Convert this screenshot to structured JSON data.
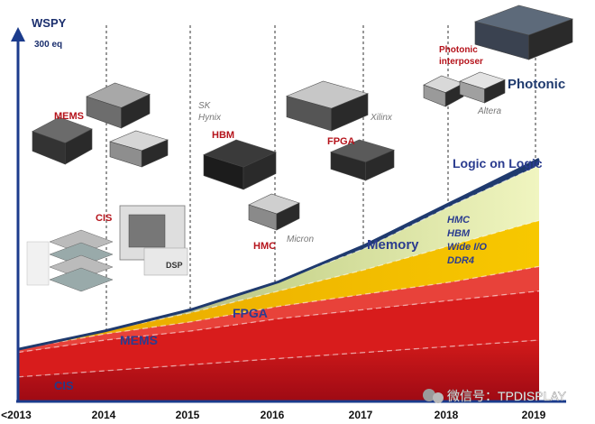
{
  "chart_data": {
    "type": "area",
    "title": "",
    "xlabel": "",
    "ylabel": "WSPY",
    "ylabel_sub": "300 eq",
    "x": [
      "<2013",
      "2014",
      "2015",
      "2016",
      "2017",
      "2018",
      "2019"
    ],
    "ylim": [
      0,
      100
    ],
    "stacked": true,
    "grid": "vertical dashed",
    "series": [
      {
        "name": "CIS",
        "color": "#b50d18",
        "values": [
          8,
          10,
          12,
          14,
          16,
          18,
          20
        ]
      },
      {
        "name": "MEMS",
        "color": "#d81c1c",
        "values": [
          8,
          10,
          11,
          13,
          14,
          15,
          16
        ]
      },
      {
        "name": "FPGA",
        "color": "#e8423a",
        "values": [
          1,
          2,
          3,
          4,
          5,
          6,
          8
        ]
      },
      {
        "name": "Memory",
        "color": "#f6c000",
        "values": [
          0,
          1,
          3,
          5,
          8,
          12,
          15
        ]
      },
      {
        "name": "Logic on Logic",
        "color": "#e6f0a8",
        "values": [
          0,
          0,
          1,
          3,
          7,
          13,
          18
        ]
      },
      {
        "name": "Photonic",
        "color": "#1f3a6e",
        "values": [
          0,
          0,
          0,
          0,
          1,
          1,
          2
        ]
      }
    ],
    "memory_types": [
      "HMC",
      "HBM",
      "Wide I/O",
      "DDR4"
    ],
    "annotations": [
      {
        "text": "MEMS",
        "year": "2014"
      },
      {
        "text": "CIS",
        "year": "2014"
      },
      {
        "text": "DSP",
        "year": "2014"
      },
      {
        "text": "SK",
        "year": "2015"
      },
      {
        "text": "Hynix",
        "year": "2015"
      },
      {
        "text": "HBM",
        "year": "2015"
      },
      {
        "text": "HMC",
        "year": "2016"
      },
      {
        "text": "Micron",
        "year": "2016"
      },
      {
        "text": "FPGA",
        "year": "2017"
      },
      {
        "text": "Xilinx",
        "year": "2017"
      },
      {
        "text": "Photonic interposer",
        "year": "2018"
      },
      {
        "text": "Altera",
        "year": "2018"
      }
    ]
  },
  "watermark": "微信号：TPDISPLAY"
}
